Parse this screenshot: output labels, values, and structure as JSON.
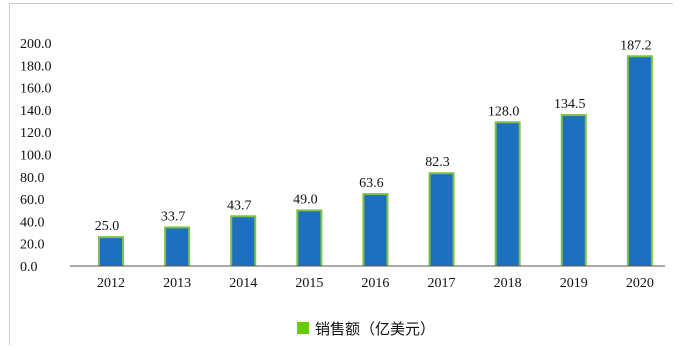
{
  "chart_data": {
    "type": "bar",
    "categories": [
      "2012",
      "2013",
      "2014",
      "2015",
      "2016",
      "2017",
      "2018",
      "2019",
      "2020"
    ],
    "series": [
      {
        "name": "销售额（亿美元）",
        "values": [
          25.0,
          33.7,
          43.7,
          49.0,
          63.6,
          82.3,
          128.0,
          134.5,
          187.2
        ],
        "color": "#1f6fbf"
      }
    ],
    "data_labels": [
      "25.0",
      "33.7",
      "43.7",
      "49.0",
      "63.6",
      "82.3",
      "128.0",
      "134.5",
      "187.2"
    ],
    "y_ticks": [
      "0.0",
      "20.0",
      "40.0",
      "60.0",
      "80.0",
      "100.0",
      "120.0",
      "140.0",
      "160.0",
      "180.0",
      "200.0"
    ],
    "ylim": [
      0,
      200
    ],
    "title": "",
    "xlabel": "",
    "ylabel": "",
    "grid": false,
    "legend_position": "bottom",
    "bar_outline_color": "#7dc242",
    "colors": {
      "bar": "#1f6fbf",
      "outline": "#7dc242",
      "legend_swatch": "#66cc00",
      "axis": "#555555"
    }
  }
}
